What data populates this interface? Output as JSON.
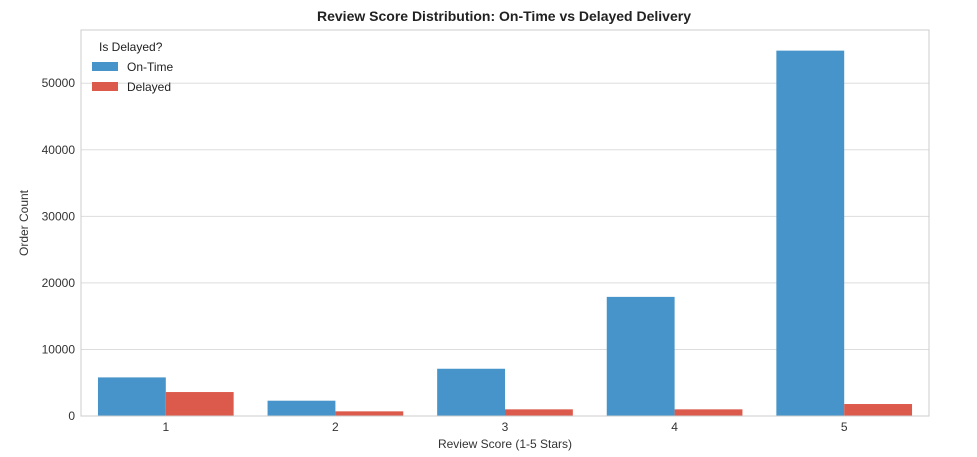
{
  "chart_data": {
    "type": "bar",
    "title": "Review Score Distribution: On-Time vs Delayed Delivery",
    "xlabel": "Review Score (1-5 Stars)",
    "ylabel": "Order Count",
    "categories": [
      "1",
      "2",
      "3",
      "4",
      "5"
    ],
    "series": [
      {
        "name": "On-Time",
        "color": "#4694c9",
        "values": [
          5800,
          2300,
          7100,
          17900,
          54900
        ]
      },
      {
        "name": "Delayed",
        "color": "#dc5a4b",
        "values": [
          3600,
          700,
          1000,
          1000,
          1800
        ]
      }
    ],
    "ylim": [
      0,
      58000
    ],
    "yticks": [
      0,
      10000,
      20000,
      30000,
      40000,
      50000
    ],
    "legend": {
      "title": "Is Delayed?",
      "placement": "top-left"
    },
    "grid": "horizontal"
  }
}
